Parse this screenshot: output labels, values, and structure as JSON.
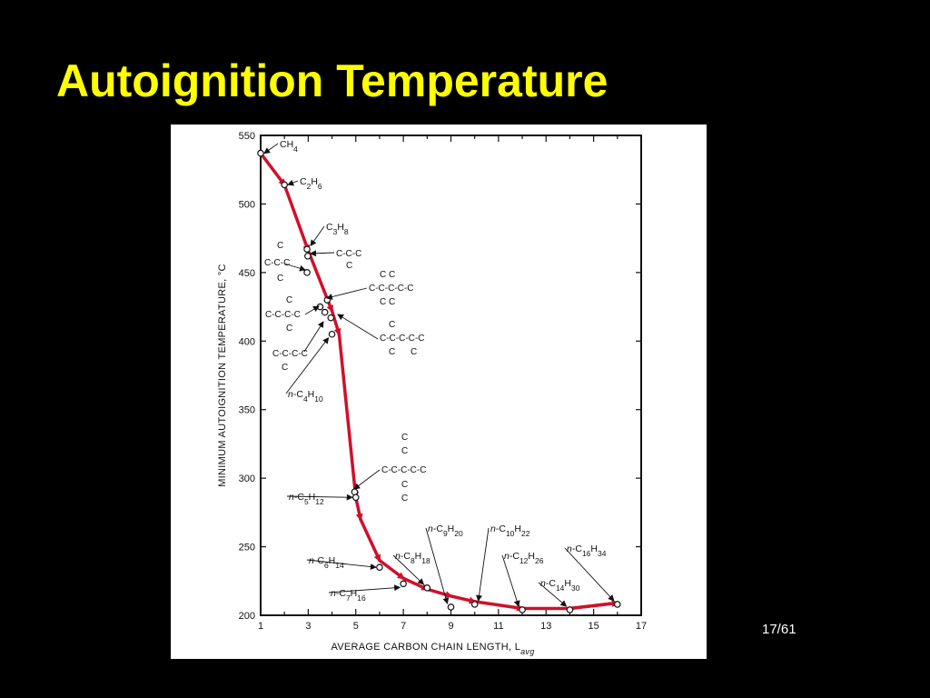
{
  "slide": {
    "title": "Autoignition Temperature",
    "page_number": "17/61"
  },
  "colors": {
    "background": "#000000",
    "title": "#ffff00",
    "trend_line": "#d0102a",
    "panel": "#ffffff"
  },
  "chart_data": {
    "type": "scatter",
    "xlabel": "AVERAGE CARBON CHAIN LENGTH, L_avg",
    "ylabel": "MINIMUM AUTOIGNITION TEMPERATURE, °C",
    "xlim": [
      1,
      17
    ],
    "ylim": [
      200,
      550
    ],
    "x_ticks": [
      1,
      3,
      5,
      7,
      9,
      11,
      13,
      15,
      17
    ],
    "y_ticks": [
      200,
      250,
      300,
      350,
      400,
      450,
      500,
      550
    ],
    "grid": false,
    "trend_line": [
      [
        1,
        537
      ],
      [
        2,
        514
      ],
      [
        3,
        466
      ],
      [
        4,
        422
      ],
      [
        4.3,
        405
      ],
      [
        5,
        286
      ],
      [
        5.2,
        270
      ],
      [
        6,
        240
      ],
      [
        7,
        227
      ],
      [
        8,
        219
      ],
      [
        9,
        214
      ],
      [
        10,
        210
      ],
      [
        12,
        205
      ],
      [
        14,
        205
      ],
      [
        16,
        209
      ]
    ],
    "points": [
      {
        "x": 1.0,
        "y": 537,
        "label": "CH4",
        "label_parts": [
          {
            "t": "CH"
          },
          {
            "t": "4",
            "sub": true
          }
        ]
      },
      {
        "x": 2.0,
        "y": 514,
        "label": "C2H6",
        "label_parts": [
          {
            "t": "C"
          },
          {
            "t": "2",
            "sub": true
          },
          {
            "t": "H"
          },
          {
            "t": "6",
            "sub": true
          }
        ]
      },
      {
        "x": 2.95,
        "y": 467,
        "label": "C3H8",
        "label_parts": [
          {
            "t": "C"
          },
          {
            "t": "3",
            "sub": true
          },
          {
            "t": "H"
          },
          {
            "t": "8",
            "sub": true
          }
        ]
      },
      {
        "x": 2.98,
        "y": 462,
        "label": "C-C-C",
        "label_parts": []
      },
      {
        "x": 2.95,
        "y": 450,
        "label": "iso-C4H10 structure",
        "label_parts": []
      },
      {
        "x": 3.5,
        "y": 425,
        "label": "neopentane structure",
        "label_parts": []
      },
      {
        "x": 3.8,
        "y": 430,
        "label": "C-C-C-C-C branched",
        "label_parts": []
      },
      {
        "x": 3.7,
        "y": 421,
        "label": "C-C-C-C-C branched 2",
        "label_parts": []
      },
      {
        "x": 3.95,
        "y": 417,
        "label": "C-C-C-C branched",
        "label_parts": []
      },
      {
        "x": 4.0,
        "y": 405,
        "label": "n-C4H10",
        "label_parts": [
          {
            "t": "n",
            "i": true
          },
          {
            "t": "-C"
          },
          {
            "t": "4",
            "sub": true
          },
          {
            "t": "H"
          },
          {
            "t": "10",
            "sub": true
          }
        ]
      },
      {
        "x": 4.95,
        "y": 290,
        "label": "branched C8",
        "label_parts": []
      },
      {
        "x": 5.0,
        "y": 286,
        "label": "n-C5H12",
        "label_parts": [
          {
            "t": "n",
            "i": true
          },
          {
            "t": "-C"
          },
          {
            "t": "5",
            "sub": true
          },
          {
            "t": "H"
          },
          {
            "t": "12",
            "sub": true
          }
        ]
      },
      {
        "x": 6.0,
        "y": 235,
        "label": "n-C6H14",
        "label_parts": [
          {
            "t": "n",
            "i": true
          },
          {
            "t": "-C"
          },
          {
            "t": "6",
            "sub": true
          },
          {
            "t": "H"
          },
          {
            "t": "14",
            "sub": true
          }
        ]
      },
      {
        "x": 7.0,
        "y": 223,
        "label": "n-C7H16",
        "label_parts": [
          {
            "t": "n",
            "i": true
          },
          {
            "t": "-C"
          },
          {
            "t": "7",
            "sub": true
          },
          {
            "t": "H"
          },
          {
            "t": "16",
            "sub": true
          }
        ]
      },
      {
        "x": 8.0,
        "y": 220,
        "label": "n-C8H18",
        "label_parts": [
          {
            "t": "n",
            "i": true
          },
          {
            "t": "-C"
          },
          {
            "t": "8",
            "sub": true
          },
          {
            "t": "H"
          },
          {
            "t": "18",
            "sub": true
          }
        ]
      },
      {
        "x": 9.0,
        "y": 206,
        "label": "n-C9H20",
        "label_parts": [
          {
            "t": "n",
            "i": true
          },
          {
            "t": "-C"
          },
          {
            "t": "9",
            "sub": true
          },
          {
            "t": "H"
          },
          {
            "t": "20",
            "sub": true
          }
        ]
      },
      {
        "x": 10.0,
        "y": 208,
        "label": "n-C10H22",
        "label_parts": [
          {
            "t": "n",
            "i": true
          },
          {
            "t": "-C"
          },
          {
            "t": "10",
            "sub": true
          },
          {
            "t": "H"
          },
          {
            "t": "22",
            "sub": true
          }
        ]
      },
      {
        "x": 12.0,
        "y": 204,
        "label": "n-C12H26",
        "label_parts": [
          {
            "t": "n",
            "i": true
          },
          {
            "t": "-C"
          },
          {
            "t": "12",
            "sub": true
          },
          {
            "t": "H"
          },
          {
            "t": "26",
            "sub": true
          }
        ]
      },
      {
        "x": 14.0,
        "y": 204,
        "label": "n-C14H30",
        "label_parts": [
          {
            "t": "n",
            "i": true
          },
          {
            "t": "-C"
          },
          {
            "t": "14",
            "sub": true
          },
          {
            "t": "H"
          },
          {
            "t": "30",
            "sub": true
          }
        ]
      },
      {
        "x": 16.0,
        "y": 208,
        "label": "n-C16H34",
        "label_parts": [
          {
            "t": "n",
            "i": true
          },
          {
            "t": "-C"
          },
          {
            "t": "16",
            "sub": true
          },
          {
            "t": "H"
          },
          {
            "t": "34",
            "sub": true
          }
        ]
      }
    ]
  }
}
